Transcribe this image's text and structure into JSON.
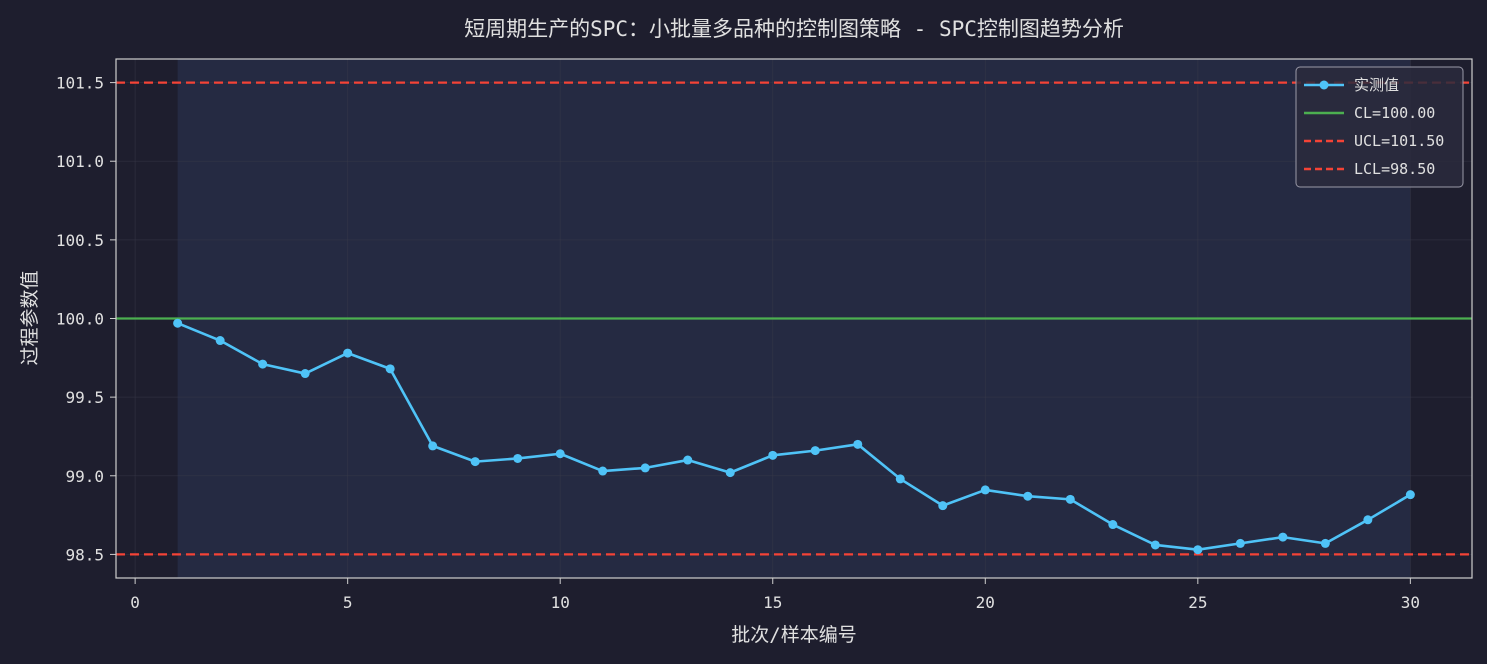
{
  "chart_data": {
    "type": "line",
    "title": "短周期生产的SPC：小批量多品种的控制图策略 - SPC控制图趋势分析",
    "xlabel": "批次/样本编号",
    "ylabel": "过程参数值",
    "xlim": [
      -0.45,
      31.45
    ],
    "ylim": [
      98.35,
      101.65
    ],
    "xticks": [
      "0",
      "5",
      "10",
      "15",
      "20",
      "25",
      "30"
    ],
    "yticks": [
      "98.5",
      "99.0",
      "99.5",
      "100.0",
      "100.5",
      "101.0",
      "101.5"
    ],
    "grid": true,
    "legend_position": "top-right",
    "series": [
      {
        "name": "实测值",
        "x": [
          1,
          2,
          3,
          4,
          5,
          6,
          7,
          8,
          9,
          10,
          11,
          12,
          13,
          14,
          15,
          16,
          17,
          18,
          19,
          20,
          21,
          22,
          23,
          24,
          25,
          26,
          27,
          28,
          29,
          30
        ],
        "values": [
          99.97,
          99.86,
          99.71,
          99.65,
          99.78,
          99.68,
          99.19,
          99.09,
          99.11,
          99.14,
          99.03,
          99.05,
          99.1,
          99.02,
          99.13,
          99.16,
          99.2,
          98.98,
          98.81,
          98.91,
          98.87,
          98.85,
          98.69,
          98.56,
          98.53,
          98.57,
          98.61,
          98.57,
          98.72,
          98.88
        ],
        "color": "#4fc3f7"
      }
    ],
    "control_lines": [
      {
        "name": "CL=100.00",
        "value": 100.0,
        "color": "#4caf50",
        "style": "solid"
      },
      {
        "name": "UCL=101.50",
        "value": 101.5,
        "color": "#f44336",
        "style": "dashed"
      },
      {
        "name": "LCL=98.50",
        "value": 98.5,
        "color": "#f44336",
        "style": "dashed"
      }
    ],
    "shaded_region": {
      "x_from": 1,
      "x_to": 30,
      "color": "#3a4a78"
    }
  },
  "colors": {
    "background": "#1e1e2e",
    "plot_background": "#1e1e2e",
    "axis": "#cfcfcf",
    "text": "#e0e0e0",
    "grid": "#3a3a4a",
    "legend_bg": "#2a2a3c"
  }
}
